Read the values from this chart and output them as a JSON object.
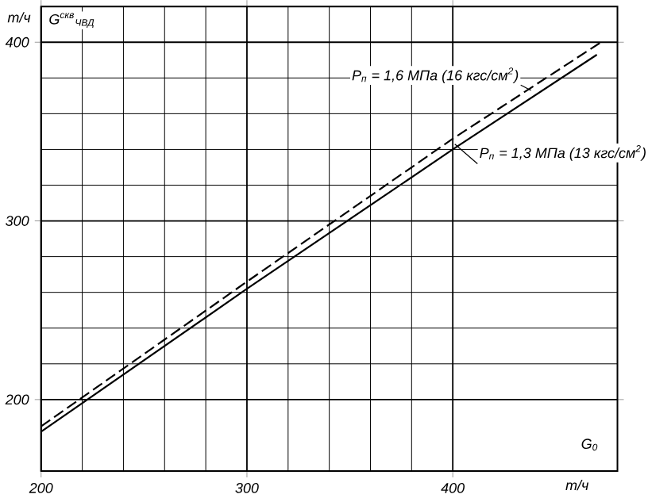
{
  "chart_data": {
    "type": "line",
    "xlabel": "т/ч",
    "ylabel": "т/ч",
    "annotations": [
      "G$^{скв}$$_{ЧВД}$",
      "G$_{0}$"
    ],
    "xlim": [
      200,
      480
    ],
    "ylim": [
      160,
      420
    ],
    "xticks": [
      200,
      300,
      400
    ],
    "yticks": [
      200,
      300,
      400
    ],
    "grid": true,
    "marker": "none",
    "series": [
      {
        "name": "P$_{п}$ = 1,6 МПа (16 кгс/см$^{2}$)",
        "color": "#000000",
        "line_style": "dashed",
        "x": [
          200,
          300,
          400,
          472
        ],
        "values": [
          185,
          266,
          346,
          400
        ]
      },
      {
        "name": "P$_{п}$ = 1,3 МПа (13 кгс/см$^{2}$)",
        "color": "#000000",
        "line_style": "solid",
        "x": [
          200,
          300,
          400,
          470
        ],
        "values": [
          182,
          262,
          340,
          393
        ]
      }
    ]
  }
}
